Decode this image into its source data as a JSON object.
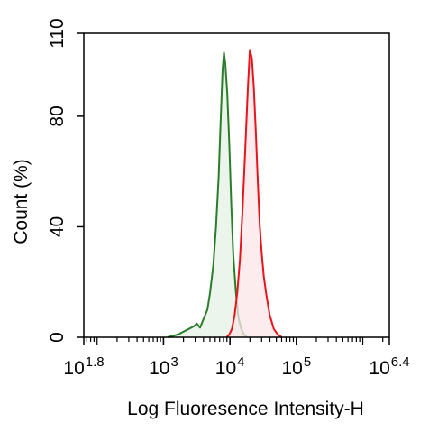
{
  "chart_data": {
    "type": "area",
    "title": "",
    "xlabel": "Log Fluoresence Intensity-H",
    "ylabel": "Count (%)",
    "x_scale": "log10",
    "xlim": [
      1.8,
      6.4
    ],
    "ylim": [
      0,
      110
    ],
    "x_ticks": [
      {
        "exp": 1.8,
        "base": "10",
        "sup": "1.8"
      },
      {
        "exp": 3,
        "base": "10",
        "sup": "3"
      },
      {
        "exp": 4,
        "base": "10",
        "sup": "4"
      },
      {
        "exp": 5,
        "base": "10",
        "sup": "5"
      },
      {
        "exp": 6.4,
        "base": "10",
        "sup": "6.4"
      }
    ],
    "y_ticks": [
      "0",
      "40",
      "80",
      "110"
    ],
    "y_tick_values": [
      0,
      40,
      80,
      110
    ],
    "grid": false,
    "legend": "none",
    "series": [
      {
        "color": "#2a7d2a",
        "fill": "#e6f2e6",
        "points": [
          [
            3.06,
            0
          ],
          [
            3.22,
            1
          ],
          [
            3.38,
            3
          ],
          [
            3.46,
            4
          ],
          [
            3.5,
            5
          ],
          [
            3.55,
            3.5
          ],
          [
            3.6,
            6.5
          ],
          [
            3.66,
            10
          ],
          [
            3.7,
            16
          ],
          [
            3.75,
            26
          ],
          [
            3.79,
            40
          ],
          [
            3.83,
            58
          ],
          [
            3.86,
            78
          ],
          [
            3.89,
            97
          ],
          [
            3.91,
            103
          ],
          [
            3.93,
            99
          ],
          [
            3.96,
            88
          ],
          [
            3.99,
            70
          ],
          [
            4.02,
            48
          ],
          [
            4.05,
            30
          ],
          [
            4.09,
            16
          ],
          [
            4.13,
            7
          ],
          [
            4.17,
            3
          ],
          [
            4.21,
            1
          ],
          [
            4.26,
            0
          ]
        ]
      },
      {
        "color": "#e8141c",
        "fill": "#fce6e8",
        "points": [
          [
            3.95,
            0
          ],
          [
            3.99,
            1
          ],
          [
            4.03,
            3
          ],
          [
            4.07,
            8
          ],
          [
            4.11,
            16
          ],
          [
            4.15,
            28
          ],
          [
            4.19,
            46
          ],
          [
            4.23,
            68
          ],
          [
            4.27,
            90
          ],
          [
            4.3,
            104
          ],
          [
            4.33,
            101
          ],
          [
            4.36,
            90
          ],
          [
            4.39,
            74
          ],
          [
            4.42,
            56
          ],
          [
            4.45,
            40
          ],
          [
            4.48,
            30
          ],
          [
            4.51,
            22
          ],
          [
            4.55,
            15
          ],
          [
            4.6,
            8
          ],
          [
            4.66,
            3
          ],
          [
            4.72,
            1
          ],
          [
            4.78,
            0
          ]
        ]
      }
    ]
  }
}
